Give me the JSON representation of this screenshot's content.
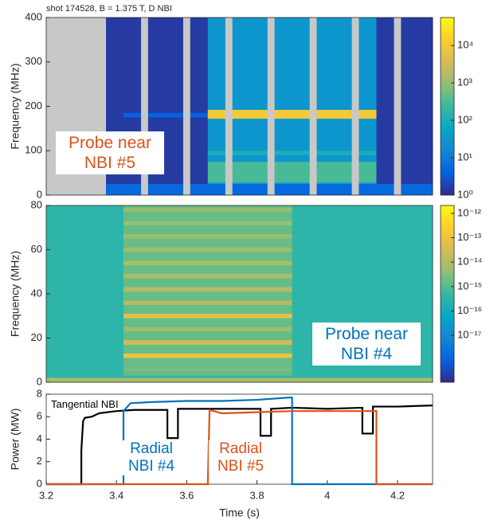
{
  "chart_data": [
    {
      "type": "heatmap",
      "title": "shot 174528, B = 1.375 T, D NBI",
      "ylabel": "Frequency (MHz)",
      "xlim": [
        3.2,
        4.3
      ],
      "ylim": [
        0,
        400
      ],
      "yticks": [
        0,
        100,
        200,
        300,
        400
      ],
      "clim": [
        1,
        56000
      ],
      "log_color": true,
      "cticks": [
        {
          "value": 1,
          "label": "10⁰"
        },
        {
          "value": 10,
          "label": "10¹"
        },
        {
          "value": 100,
          "label": "10²"
        },
        {
          "value": 1000,
          "label": "10³"
        },
        {
          "value": 10000,
          "label": "10⁴"
        }
      ],
      "colormap": [
        "#352a87",
        "#0363e1",
        "#1485d4",
        "#06a7c6",
        "#38b99e",
        "#92bf73",
        "#d9ba56",
        "#fcce2e",
        "#f9fb0e"
      ],
      "cells": [
        {
          "t": [
            3.37,
            4.3
          ],
          "f": [
            0,
            400
          ],
          "value": 1.5
        },
        {
          "t": [
            3.37,
            4.3
          ],
          "f": [
            0,
            25
          ],
          "value": 5
        },
        {
          "t": [
            3.42,
            3.66
          ],
          "f": [
            175,
            185
          ],
          "value": 4
        },
        {
          "t": [
            3.66,
            4.14
          ],
          "f": [
            25,
            400
          ],
          "value": 30
        },
        {
          "t": [
            3.66,
            4.14
          ],
          "f": [
            90,
            100
          ],
          "value": 100
        },
        {
          "t": [
            3.66,
            4.14
          ],
          "f": [
            28,
            75
          ],
          "value": 300
        },
        {
          "t": [
            3.66,
            4.14
          ],
          "f": [
            172,
            192
          ],
          "value": 10000
        }
      ],
      "gap_color": "#c8c8c8",
      "gaps": [
        [
          3.2,
          3.37
        ],
        [
          3.47,
          3.49
        ],
        [
          3.59,
          3.61
        ],
        [
          3.71,
          3.73
        ],
        [
          3.83,
          3.85
        ],
        [
          3.95,
          3.97
        ],
        [
          4.07,
          4.09
        ],
        [
          4.19,
          4.21
        ]
      ],
      "annotation": {
        "text": "Probe near NBI #5",
        "color": "#d95319"
      }
    },
    {
      "type": "heatmap",
      "ylabel": "Frequency (MHz)",
      "xlim": [
        3.2,
        4.3
      ],
      "ylim": [
        0,
        80
      ],
      "yticks": [
        0,
        20,
        40,
        60,
        80
      ],
      "clim": [
        1.2e-19,
        2.1e-12
      ],
      "log_color": true,
      "cticks": [
        {
          "value": 1e-12,
          "label": "10⁻¹²"
        },
        {
          "value": 1e-13,
          "label": "10⁻¹³"
        },
        {
          "value": 1e-14,
          "label": "10⁻¹⁴"
        },
        {
          "value": 1e-15,
          "label": "10⁻¹⁵"
        },
        {
          "value": 1e-16,
          "label": "10⁻¹⁶"
        },
        {
          "value": 1e-17,
          "label": "10⁻¹⁷"
        }
      ],
      "colormap": [
        "#352a87",
        "#0363e1",
        "#1485d4",
        "#06a7c6",
        "#38b99e",
        "#92bf73",
        "#d9ba56",
        "#fcce2e",
        "#f9fb0e"
      ],
      "cells": [
        {
          "t": [
            3.2,
            4.3
          ],
          "f": [
            0,
            80
          ],
          "value": 3e-16
        },
        {
          "t": [
            3.42,
            3.9
          ],
          "f": [
            3,
            80
          ],
          "value": 1.5e-15
        },
        {
          "t": [
            3.2,
            4.3
          ],
          "f": [
            0,
            2
          ],
          "value": 8e-15
        },
        {
          "t": [
            3.42,
            3.9
          ],
          "f": [
            5,
            7
          ],
          "value": 2e-15
        },
        {
          "t": [
            3.42,
            3.9
          ],
          "f": [
            11,
            13
          ],
          "value": 1e-13
        },
        {
          "t": [
            3.42,
            3.9
          ],
          "f": [
            17,
            19
          ],
          "value": 3e-14
        },
        {
          "t": [
            3.42,
            3.9
          ],
          "f": [
            23,
            25
          ],
          "value": 5e-15
        },
        {
          "t": [
            3.42,
            3.9
          ],
          "f": [
            29,
            31
          ],
          "value": 6e-14
        },
        {
          "t": [
            3.42,
            3.9
          ],
          "f": [
            35,
            37
          ],
          "value": 1e-14
        },
        {
          "t": [
            3.42,
            3.9
          ],
          "f": [
            41,
            43
          ],
          "value": 1e-14
        },
        {
          "t": [
            3.42,
            3.9
          ],
          "f": [
            47,
            49
          ],
          "value": 8e-15
        },
        {
          "t": [
            3.42,
            3.9
          ],
          "f": [
            53,
            55
          ],
          "value": 8e-15
        },
        {
          "t": [
            3.42,
            3.9
          ],
          "f": [
            59,
            61
          ],
          "value": 6e-15
        },
        {
          "t": [
            3.42,
            3.9
          ],
          "f": [
            65,
            67
          ],
          "value": 5e-15
        },
        {
          "t": [
            3.42,
            3.9
          ],
          "f": [
            71,
            73
          ],
          "value": 4e-15
        },
        {
          "t": [
            3.42,
            3.9
          ],
          "f": [
            77,
            79
          ],
          "value": 4e-15
        }
      ],
      "annotation": {
        "text": "Probe near NBI #4",
        "color": "#0072bd"
      }
    },
    {
      "type": "line",
      "xlabel": "Time (s)",
      "ylabel": "Power (MW)",
      "xlim": [
        3.2,
        4.3
      ],
      "ylim": [
        0,
        8
      ],
      "xticks": [
        3.2,
        3.4,
        3.6,
        3.8,
        4,
        4.2
      ],
      "yticks": [
        0,
        2,
        4,
        6,
        8
      ],
      "series": [
        {
          "name": "Tangential NBI",
          "color": "#000000",
          "x": [
            3.2,
            3.3,
            3.3,
            3.305,
            3.31,
            3.33,
            3.35,
            3.4,
            3.45,
            3.545,
            3.545,
            3.575,
            3.575,
            3.65,
            3.7,
            3.81,
            3.81,
            3.84,
            3.84,
            3.9,
            4.0,
            4.1,
            4.1,
            4.13,
            4.13,
            4.2,
            4.3
          ],
          "values": [
            0,
            0,
            3,
            5.6,
            5.9,
            6.0,
            6.3,
            6.5,
            6.6,
            6.6,
            4.1,
            4.1,
            6.7,
            6.7,
            6.7,
            6.7,
            4.3,
            4.3,
            6.7,
            6.8,
            6.7,
            6.8,
            4.5,
            4.5,
            6.9,
            6.9,
            7.0
          ]
        },
        {
          "name": "Radial NBI #4",
          "color": "#0072bd",
          "x": [
            3.2,
            3.42,
            3.42,
            3.44,
            3.5,
            3.6,
            3.7,
            3.8,
            3.89,
            3.9,
            3.9,
            4.3
          ],
          "values": [
            0,
            0,
            6.5,
            7.2,
            7.3,
            7.4,
            7.4,
            7.5,
            7.7,
            7.7,
            0,
            0
          ]
        },
        {
          "name": "Radial NBI #5",
          "color": "#d95319",
          "x": [
            3.2,
            3.66,
            3.665,
            3.7,
            3.8,
            3.9,
            4.0,
            4.13,
            4.14,
            4.14,
            4.3
          ],
          "values": [
            0,
            0,
            6.6,
            6.3,
            6.4,
            6.5,
            6.5,
            6.5,
            6.5,
            0,
            0
          ]
        }
      ]
    }
  ]
}
